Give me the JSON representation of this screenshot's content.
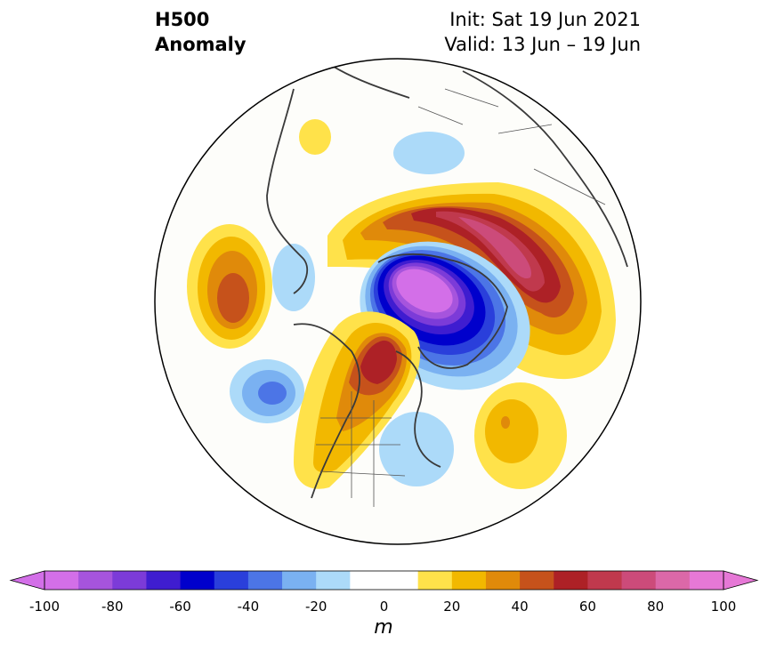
{
  "title": {
    "variable": "H500",
    "field": "Anomaly",
    "init": "Init: Sat 19 Jun 2021",
    "valid": "Valid: 13 Jun – 19 Jun"
  },
  "map": {
    "projection": "north-polar-stereographic",
    "boundary": "circle",
    "features": [
      "coastlines",
      "country-borders",
      "us-state-borders",
      "canadian-province-borders"
    ],
    "anomaly_centers": [
      {
        "region": "Arctic Ocean / north of Greenland",
        "sign": "negative",
        "peak_m": -100
      },
      {
        "region": "Northern Eurasia / Siberia ridge",
        "sign": "positive",
        "peak_m": 90
      },
      {
        "region": "Western Canada / Hudson Bay",
        "sign": "positive",
        "peak_m": 60
      },
      {
        "region": "North Pacific (east)",
        "sign": "positive",
        "peak_m": 40
      },
      {
        "region": "North Pacific (south)",
        "sign": "negative",
        "peak_m": -40
      },
      {
        "region": "Northeastern United States",
        "sign": "negative",
        "peak_m": -20
      },
      {
        "region": "Central Atlantic",
        "sign": "positive",
        "peak_m": 40
      },
      {
        "region": "Bering Sea",
        "sign": "negative",
        "peak_m": -30
      },
      {
        "region": "Eastern Europe / Black Sea",
        "sign": "negative",
        "peak_m": -20
      },
      {
        "region": "Scandinavia",
        "sign": "positive",
        "peak_m": 20
      }
    ]
  },
  "colorbar": {
    "unit": "m",
    "extend": "both",
    "levels": [
      -100,
      -90,
      -80,
      -70,
      -60,
      -50,
      -40,
      -30,
      -20,
      -10,
      10,
      20,
      30,
      40,
      50,
      60,
      70,
      80,
      90,
      100
    ],
    "tick_labels": [
      "-100",
      "-80",
      "-60",
      "-40",
      "-20",
      "0",
      "20",
      "40",
      "60",
      "80",
      "100"
    ],
    "colors": [
      "#d36fe8",
      "#a654dd",
      "#7c3bd8",
      "#3f1dd0",
      "#0000cc",
      "#2a3fdb",
      "#4c75e6",
      "#7ab1f1",
      "#acdaf9",
      "#ffffff",
      "#ffe24a",
      "#f2b800",
      "#e08a0a",
      "#c6521b",
      "#ad2126",
      "#c0394d",
      "#cc4b7a",
      "#db68a8",
      "#e678d6"
    ],
    "extend_low_color": "#d36fe8",
    "extend_high_color": "#e678d6"
  }
}
